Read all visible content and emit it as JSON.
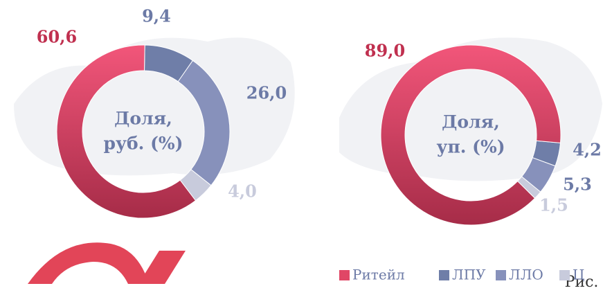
{
  "legend": {
    "names": [
      "Ритейл",
      "ЛПУ",
      "ЛЛО",
      "Ц"
    ],
    "colors": [
      "#e04766",
      "#6f7ea8",
      "#8791bb",
      "#c8cbdc"
    ]
  },
  "chart_data": [
    {
      "type": "pie",
      "center_label": [
        "Доля,",
        "руб. (%)"
      ],
      "values": [
        60.6,
        9.4,
        26.0,
        4.0
      ],
      "value_labels": [
        "60,6",
        "9,4",
        "26,0",
        "4,0"
      ]
    },
    {
      "type": "pie",
      "center_label": [
        "Доля,",
        "уп. (%)"
      ],
      "values": [
        89.0,
        4.2,
        5.3,
        1.5
      ],
      "value_labels": [
        "89,0",
        "4,2",
        "5,3",
        "1,5"
      ]
    }
  ],
  "caption": "Рис."
}
